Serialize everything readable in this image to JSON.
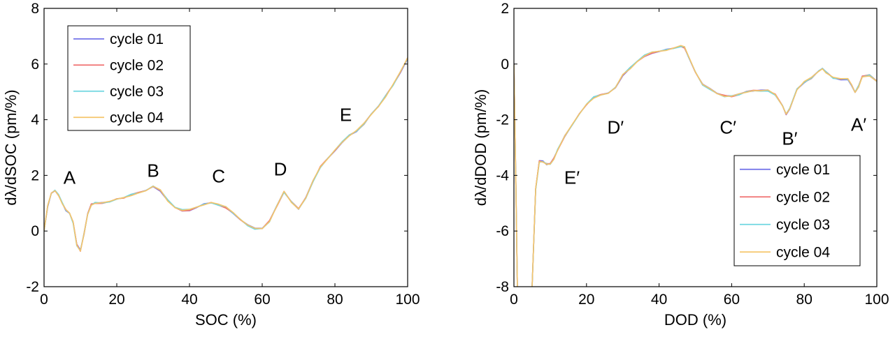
{
  "chart_data": [
    {
      "type": "line",
      "xlabel": "SOC (%)",
      "ylabel": "dλ/dSOC (pm/%)",
      "xlim": [
        0,
        100
      ],
      "ylim": [
        -2,
        8
      ],
      "xticks": [
        0,
        20,
        40,
        60,
        80,
        100
      ],
      "yticks": [
        -2,
        0,
        2,
        4,
        6,
        8
      ],
      "legend_position": "top-left",
      "series": [
        {
          "name": "cycle 01",
          "color": "#6f6fe8"
        },
        {
          "name": "cycle 02",
          "color": "#f07070"
        },
        {
          "name": "cycle 03",
          "color": "#6fd6e0"
        },
        {
          "name": "cycle 04",
          "color": "#f5c56a"
        }
      ],
      "x": [
        0,
        1,
        2,
        3,
        4,
        5,
        6,
        7,
        8,
        9,
        10,
        11,
        12,
        13,
        14,
        16,
        18,
        20,
        22,
        24,
        26,
        28,
        30,
        32,
        34,
        36,
        38,
        40,
        42,
        44,
        46,
        48,
        50,
        52,
        54,
        56,
        58,
        60,
        62,
        64,
        66,
        68,
        70,
        72,
        74,
        76,
        78,
        80,
        82,
        84,
        86,
        88,
        90,
        92,
        94,
        96,
        98,
        100
      ],
      "y": [
        0.0,
        0.9,
        1.35,
        1.45,
        1.3,
        1.0,
        0.75,
        0.65,
        0.3,
        -0.5,
        -0.7,
        -0.1,
        0.6,
        0.95,
        1.0,
        1.0,
        1.05,
        1.15,
        1.2,
        1.3,
        1.38,
        1.45,
        1.6,
        1.45,
        1.1,
        0.85,
        0.75,
        0.75,
        0.85,
        0.95,
        1.0,
        0.95,
        0.85,
        0.65,
        0.4,
        0.2,
        0.08,
        0.1,
        0.35,
        0.9,
        1.4,
        1.05,
        0.8,
        1.2,
        1.8,
        2.3,
        2.6,
        2.9,
        3.2,
        3.45,
        3.6,
        3.85,
        4.2,
        4.5,
        4.85,
        5.25,
        5.7,
        6.2
      ],
      "annotations": [
        {
          "text": "A",
          "x": 7,
          "y": 1.7
        },
        {
          "text": "B",
          "x": 30,
          "y": 1.95
        },
        {
          "text": "C",
          "x": 48,
          "y": 1.75
        },
        {
          "text": "D",
          "x": 65,
          "y": 2.0
        },
        {
          "text": "E",
          "x": 83,
          "y": 3.95
        }
      ]
    },
    {
      "type": "line",
      "xlabel": "DOD (%)",
      "ylabel": "dλ/dDOD (pm/%)",
      "xlim": [
        0,
        100
      ],
      "ylim": [
        -8,
        2
      ],
      "xticks": [
        0,
        20,
        40,
        60,
        80,
        100
      ],
      "yticks": [
        -8,
        -6,
        -4,
        -2,
        0,
        2
      ],
      "legend_position": "bottom-right",
      "series": [
        {
          "name": "cycle 01",
          "color": "#6f6fe8"
        },
        {
          "name": "cycle 02",
          "color": "#f07070"
        },
        {
          "name": "cycle 03",
          "color": "#6fd6e0"
        },
        {
          "name": "cycle 04",
          "color": "#f5c56a"
        }
      ],
      "x": [
        0,
        0.5,
        1,
        2,
        3,
        4,
        4.5,
        5,
        6,
        7,
        8,
        9,
        10,
        11,
        12,
        14,
        16,
        18,
        20,
        22,
        24,
        26,
        28,
        30,
        32,
        34,
        36,
        38,
        40,
        42,
        44,
        46,
        47,
        48,
        50,
        52,
        54,
        56,
        58,
        60,
        62,
        64,
        66,
        68,
        70,
        72,
        74,
        75,
        76,
        78,
        80,
        82,
        84,
        85,
        86,
        88,
        90,
        92,
        93,
        94,
        95,
        96,
        98,
        100
      ],
      "y": [
        0.0,
        -4.0,
        -8.5,
        -8.5,
        -8.5,
        -8.5,
        -8.5,
        -8.0,
        -4.5,
        -3.5,
        -3.5,
        -3.6,
        -3.6,
        -3.4,
        -3.1,
        -2.6,
        -2.2,
        -1.8,
        -1.45,
        -1.2,
        -1.1,
        -1.05,
        -0.85,
        -0.4,
        -0.15,
        0.1,
        0.3,
        0.4,
        0.45,
        0.5,
        0.55,
        0.65,
        0.6,
        0.3,
        -0.3,
        -0.75,
        -0.9,
        -1.05,
        -1.15,
        -1.15,
        -1.1,
        -1.0,
        -0.95,
        -0.95,
        -0.95,
        -1.1,
        -1.5,
        -1.8,
        -1.6,
        -0.9,
        -0.65,
        -0.5,
        -0.25,
        -0.15,
        -0.3,
        -0.5,
        -0.55,
        -0.55,
        -0.75,
        -1.0,
        -0.8,
        -0.45,
        -0.4,
        -0.6
      ],
      "annotations": [
        {
          "text": "E′",
          "x": 16,
          "y": -4.3
        },
        {
          "text": "D′",
          "x": 28,
          "y": -2.5
        },
        {
          "text": "C′",
          "x": 59,
          "y": -2.5
        },
        {
          "text": "B′",
          "x": 76,
          "y": -2.9
        },
        {
          "text": "A′",
          "x": 95,
          "y": -2.4
        }
      ]
    }
  ]
}
